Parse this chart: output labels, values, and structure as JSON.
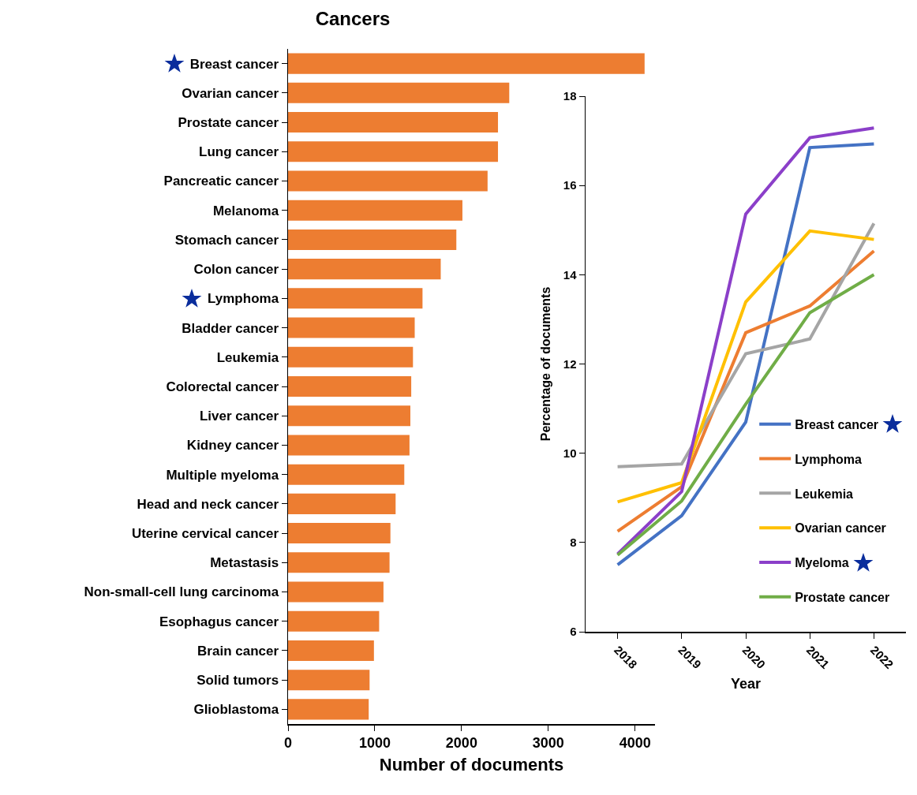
{
  "chart_data": [
    {
      "type": "bar",
      "orientation": "horizontal",
      "title": "Cancers",
      "xlabel": "Number of documents",
      "categories": [
        "Breast cancer",
        "Ovarian cancer",
        "Prostate cancer",
        "Lung cancer",
        "Pancreatic cancer",
        "Melanoma",
        "Stomach cancer",
        "Colon cancer",
        "Lymphoma",
        "Bladder cancer",
        "Leukemia",
        "Colorectal cancer",
        "Liver cancer",
        "Kidney cancer",
        "Multiple myeloma",
        "Head and neck cancer",
        "Uterine cervical cancer",
        "Metastasis",
        "Non-small-cell lung carcinoma",
        "Esophagus cancer",
        "Brain cancer",
        "Solid tumors",
        "Glioblastoma"
      ],
      "values": [
        4110,
        2550,
        2420,
        2420,
        2300,
        2010,
        1940,
        1760,
        1550,
        1460,
        1440,
        1420,
        1410,
        1400,
        1340,
        1240,
        1180,
        1170,
        1100,
        1050,
        990,
        940,
        930
      ],
      "color": "#ed7d31",
      "xlim": [
        0,
        4230
      ],
      "xticks": [
        0,
        1000,
        2000,
        3000,
        4000
      ],
      "grid": false
    },
    {
      "type": "line",
      "xlabel": "Year",
      "ylabel": "Percentage of documents",
      "categories": [
        "2018",
        "2019",
        "2020",
        "2021",
        "2022"
      ],
      "series": [
        {
          "name": "Breast cancer",
          "color": "#4472c4",
          "values": [
            7.5,
            8.6,
            10.7,
            16.85,
            16.93
          ]
        },
        {
          "name": "Lymphoma",
          "color": "#ed7d31",
          "values": [
            8.25,
            9.25,
            12.7,
            13.3,
            14.53
          ]
        },
        {
          "name": "Leukemia",
          "color": "#a5a5a5",
          "values": [
            9.7,
            9.76,
            12.23,
            12.56,
            15.15
          ]
        },
        {
          "name": "Ovarian cancer",
          "color": "#ffc000",
          "values": [
            8.91,
            9.34,
            13.39,
            14.98,
            14.79
          ]
        },
        {
          "name": "Myeloma",
          "color": "#8b3fc9",
          "values": [
            7.74,
            9.14,
            15.36,
            17.07,
            17.29
          ]
        },
        {
          "name": "Prostate cancer",
          "color": "#70ad47",
          "values": [
            7.72,
            8.93,
            11.1,
            13.15,
            14.0
          ]
        }
      ],
      "ylim": [
        6,
        18
      ],
      "yticks": [
        6,
        8,
        10,
        12,
        14,
        16,
        18
      ],
      "legend": "bottom right",
      "grid": false
    }
  ]
}
